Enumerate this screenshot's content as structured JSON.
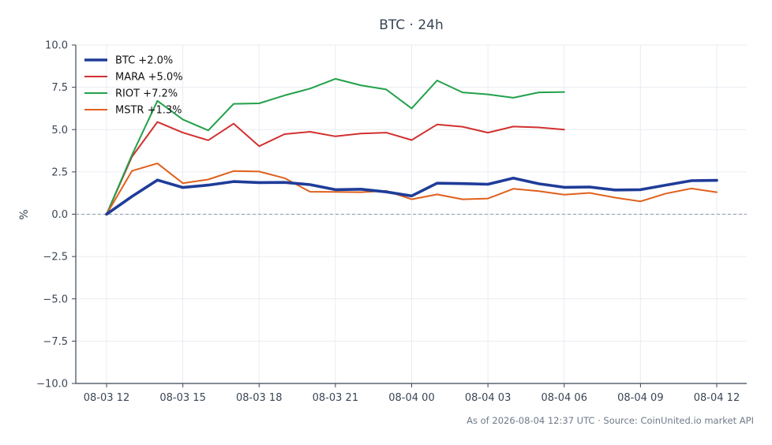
{
  "chart_data": {
    "type": "line",
    "title": "BTC · 24h",
    "xlabel": "",
    "ylabel": "%",
    "ylim": [
      -10,
      10
    ],
    "y_ticks": [
      -10.0,
      -7.5,
      -5.0,
      -2.5,
      0.0,
      2.5,
      5.0,
      7.5,
      10.0
    ],
    "y_tick_labels": [
      "−10.0",
      "−7.5",
      "−5.0",
      "−2.5",
      "0.0",
      "2.5",
      "5.0",
      "7.5",
      "10.0"
    ],
    "x_tick_labels": [
      "08-03 12",
      "08-03 15",
      "08-03 18",
      "08-03 21",
      "08-04 00",
      "08-04 03",
      "08-04 06",
      "08-04 09",
      "08-04 12"
    ],
    "x_tick_hours": [
      0,
      3,
      6,
      9,
      12,
      15,
      18,
      21,
      24
    ],
    "grid": true,
    "legend_position": "top-left",
    "zero_line": true,
    "series": [
      {
        "name": "BTC +2.0%",
        "color": "#1f3c99",
        "hours": [
          0,
          1,
          2,
          3,
          4,
          5,
          6,
          7,
          8,
          9,
          10,
          11,
          12,
          13,
          14,
          15,
          16,
          17,
          18,
          19,
          20,
          21,
          22,
          23,
          24
        ],
        "values": [
          0,
          1.05,
          2.02,
          1.58,
          1.72,
          1.93,
          1.87,
          1.88,
          1.75,
          1.45,
          1.48,
          1.32,
          1.08,
          1.83,
          1.81,
          1.77,
          2.13,
          1.8,
          1.59,
          1.61,
          1.43,
          1.45,
          1.72,
          1.98,
          2.0
        ]
      },
      {
        "name": "MARA +5.0%",
        "color": "#d23030",
        "hours": [
          0,
          1,
          2,
          3,
          4,
          5,
          6,
          7,
          8,
          9,
          10,
          11,
          12,
          13,
          14,
          15,
          16,
          17,
          18
        ],
        "values": [
          0,
          3.4,
          5.45,
          4.82,
          4.37,
          5.35,
          4.02,
          4.73,
          4.87,
          4.6,
          4.77,
          4.82,
          4.38,
          5.3,
          5.17,
          4.82,
          5.18,
          5.13,
          5.0
        ]
      },
      {
        "name": "RIOT +7.2%",
        "color": "#22a04a",
        "hours": [
          0,
          1,
          2,
          3,
          4,
          5,
          6,
          7,
          8,
          9,
          10,
          11,
          12,
          13,
          14,
          15,
          16,
          17,
          18
        ],
        "values": [
          0,
          3.5,
          6.7,
          5.6,
          4.95,
          6.52,
          6.55,
          7.02,
          7.42,
          8.0,
          7.62,
          7.37,
          6.25,
          7.9,
          7.2,
          7.08,
          6.88,
          7.2,
          7.22
        ]
      },
      {
        "name": "MSTR +1.3%",
        "color": "#e0601c",
        "hours": [
          0,
          1,
          2,
          3,
          4,
          5,
          6,
          7,
          8,
          9,
          10,
          11,
          12,
          13,
          14,
          15,
          16,
          17,
          18,
          19,
          20,
          21,
          22,
          23,
          24
        ],
        "values": [
          0,
          2.56,
          3.0,
          1.83,
          2.05,
          2.55,
          2.52,
          2.13,
          1.33,
          1.32,
          1.3,
          1.38,
          0.88,
          1.17,
          0.88,
          0.93,
          1.5,
          1.36,
          1.15,
          1.26,
          0.98,
          0.76,
          1.22,
          1.52,
          1.3
        ]
      }
    ]
  },
  "footer": {
    "source_text": "As of 2026-08-04 12:37 UTC · Source: CoinUnited.io market API"
  }
}
